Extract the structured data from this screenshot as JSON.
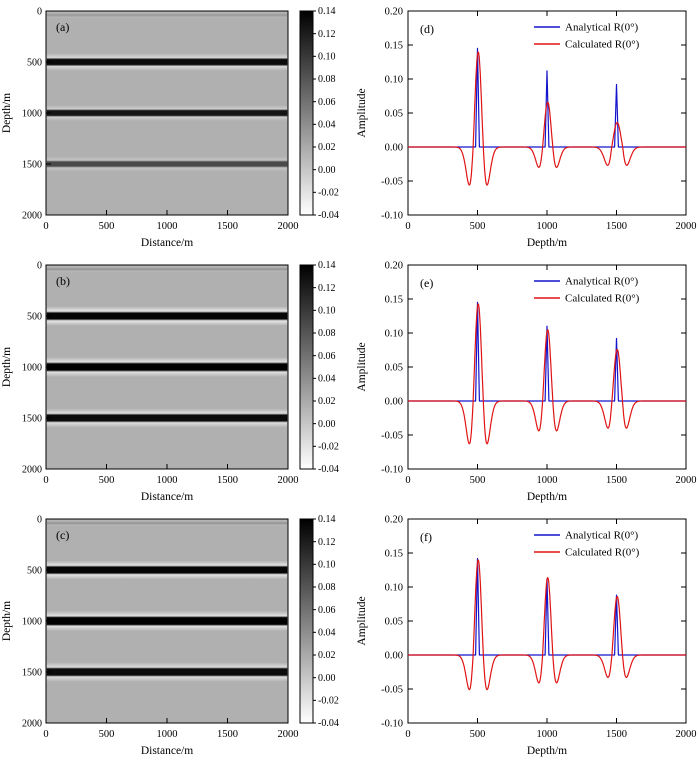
{
  "colors": {
    "analytical": "#1414cc",
    "calculated": "#e01414",
    "heatmap_background": "#b0b0b0",
    "axis": "#000000"
  },
  "chart_data": [
    {
      "id": "a",
      "type": "heatmap",
      "panel_label": "(a)",
      "xlabel": "Distance/m",
      "ylabel": "Depth/m",
      "xlim": [
        0,
        2000
      ],
      "ylim": [
        0,
        2000
      ],
      "xticks": [
        0,
        500,
        1000,
        1500,
        2000
      ],
      "xtick_labels": [
        "0",
        "500",
        "1000",
        "1500",
        "2000"
      ],
      "yticks": [
        0,
        500,
        1000,
        1500,
        2000
      ],
      "ytick_labels": [
        "0",
        "500",
        "1000",
        "1500",
        "2000"
      ],
      "background": "#b0b0b0",
      "reflectors": [
        {
          "depth_m": 40,
          "core": "#9f9f9f",
          "halo": "#b6b6b6",
          "core_m": 20,
          "halo_m": 70
        },
        {
          "depth_m": 500,
          "core": "#0a0a0a",
          "halo": "#d9d9d9",
          "core_m": 50,
          "halo_m": 170
        },
        {
          "depth_m": 1000,
          "core": "#141414",
          "halo": "#cdcdcd",
          "core_m": 45,
          "halo_m": 155
        },
        {
          "depth_m": 1500,
          "core": "#4a4a4a",
          "halo": "#c3c3c3",
          "core_m": 40,
          "halo_m": 150
        }
      ],
      "colorbar": {
        "vmax": 0.14,
        "vmin": -0.04,
        "top_color": "#000000",
        "bottom_color": "#ffffff",
        "tick_labels": [
          "0.14",
          "0.12",
          "0.10",
          "0.08",
          "0.06",
          "0.04",
          "0.02",
          "0.00",
          "-0.02",
          "-0.04"
        ]
      }
    },
    {
      "id": "b",
      "type": "heatmap",
      "panel_label": "(b)",
      "xlabel": "Distance/m",
      "ylabel": "Depth/m",
      "xlim": [
        0,
        2000
      ],
      "ylim": [
        0,
        2000
      ],
      "xticks": [
        0,
        500,
        1000,
        1500,
        2000
      ],
      "xtick_labels": [
        "0",
        "500",
        "1000",
        "1500",
        "2000"
      ],
      "yticks": [
        0,
        500,
        1000,
        1500,
        2000
      ],
      "ytick_labels": [
        "0",
        "500",
        "1000",
        "1500",
        "2000"
      ],
      "background": "#b0b0b0",
      "reflectors": [
        {
          "depth_m": 40,
          "core": "#9b9b9b",
          "halo": "#b8b8b8",
          "core_m": 20,
          "halo_m": 70
        },
        {
          "depth_m": 500,
          "core": "#050505",
          "halo": "#e8e8e8",
          "core_m": 55,
          "halo_m": 190
        },
        {
          "depth_m": 1000,
          "core": "#000000",
          "halo": "#e0e0e0",
          "core_m": 60,
          "halo_m": 195
        },
        {
          "depth_m": 1500,
          "core": "#0a0a0a",
          "halo": "#dedede",
          "core_m": 55,
          "halo_m": 185
        }
      ],
      "colorbar": {
        "vmax": 0.14,
        "vmin": -0.04,
        "top_color": "#000000",
        "bottom_color": "#ffffff",
        "tick_labels": [
          "0.14",
          "0.12",
          "0.10",
          "0.08",
          "0.06",
          "0.04",
          "0.02",
          "0.00",
          "-0.02",
          "-0.04"
        ]
      }
    },
    {
      "id": "c",
      "type": "heatmap",
      "panel_label": "(c)",
      "xlabel": "Distance/m",
      "ylabel": "Depth/m",
      "xlim": [
        0,
        2000
      ],
      "ylim": [
        0,
        2000
      ],
      "xticks": [
        0,
        500,
        1000,
        1500,
        2000
      ],
      "xtick_labels": [
        "0",
        "500",
        "1000",
        "1500",
        "2000"
      ],
      "yticks": [
        0,
        500,
        1000,
        1500,
        2000
      ],
      "ytick_labels": [
        "0",
        "500",
        "1000",
        "1500",
        "2000"
      ],
      "background": "#b0b0b0",
      "reflectors": [
        {
          "depth_m": 40,
          "core": "#9b9b9b",
          "halo": "#b8b8b8",
          "core_m": 20,
          "halo_m": 70
        },
        {
          "depth_m": 500,
          "core": "#060606",
          "halo": "#e4e4e4",
          "core_m": 55,
          "halo_m": 185
        },
        {
          "depth_m": 1000,
          "core": "#000000",
          "halo": "#e0e0e0",
          "core_m": 65,
          "halo_m": 200
        },
        {
          "depth_m": 1500,
          "core": "#0c0c0c",
          "halo": "#dcdcdc",
          "core_m": 60,
          "halo_m": 190
        }
      ],
      "colorbar": {
        "vmax": 0.14,
        "vmin": -0.04,
        "top_color": "#000000",
        "bottom_color": "#ffffff",
        "tick_labels": [
          "0.14",
          "0.12",
          "0.10",
          "0.08",
          "0.06",
          "0.04",
          "0.02",
          "0.00",
          "-0.02",
          "-0.04"
        ]
      }
    },
    {
      "id": "d",
      "type": "line",
      "panel_label": "(d)",
      "xlabel": "Depth/m",
      "ylabel": "Amplitude",
      "xlim": [
        0,
        2000
      ],
      "ylim": [
        -0.1,
        0.2
      ],
      "xticks": [
        0,
        500,
        1000,
        1500,
        2000
      ],
      "xtick_labels": [
        "0",
        "500",
        "1000",
        "1500",
        "2000"
      ],
      "yticks": [
        -0.1,
        -0.05,
        0.0,
        0.05,
        0.1,
        0.15,
        0.2
      ],
      "ytick_labels": [
        "-0.10",
        "-0.05",
        "0.00",
        "0.05",
        "0.10",
        "0.15",
        "0.20"
      ],
      "legend": {
        "position": "top-right",
        "entries": [
          {
            "label": "Analytical R(0°)",
            "color": "#1414cc"
          },
          {
            "label": "Calculated R(0°)",
            "color": "#e01414"
          }
        ]
      },
      "series": [
        {
          "name": "Analytical R(0°)",
          "color": "#1414cc",
          "shape": "spike",
          "spikes": [
            {
              "center": 500,
              "peak": 0.145,
              "half_width": 14
            },
            {
              "center": 1000,
              "peak": 0.112,
              "half_width": 14
            },
            {
              "center": 1500,
              "peak": 0.092,
              "half_width": 14
            }
          ]
        },
        {
          "name": "Calculated R(0°)",
          "color": "#e01414",
          "shape": "ricker",
          "wavelets": [
            {
              "center": 505,
              "peak": 0.14,
              "trough": -0.056,
              "width_m": 52
            },
            {
              "center": 1005,
              "peak": 0.066,
              "trough": -0.03,
              "width_m": 52
            },
            {
              "center": 1505,
              "peak": 0.036,
              "trough": -0.027,
              "width_m": 56
            }
          ]
        }
      ]
    },
    {
      "id": "e",
      "type": "line",
      "panel_label": "(e)",
      "xlabel": "Depth/m",
      "ylabel": "Amplitude",
      "xlim": [
        0,
        2000
      ],
      "ylim": [
        -0.1,
        0.2
      ],
      "xticks": [
        0,
        500,
        1000,
        1500,
        2000
      ],
      "xtick_labels": [
        "0",
        "500",
        "1000",
        "1500",
        "2000"
      ],
      "yticks": [
        -0.1,
        -0.05,
        0.0,
        0.05,
        0.1,
        0.15,
        0.2
      ],
      "ytick_labels": [
        "-0.10",
        "-0.05",
        "0.00",
        "0.05",
        "0.10",
        "0.15",
        "0.20"
      ],
      "legend": {
        "position": "top-right",
        "entries": [
          {
            "label": "Analytical R(0°)",
            "color": "#1414cc"
          },
          {
            "label": "Calculated R(0°)",
            "color": "#e01414"
          }
        ]
      },
      "series": [
        {
          "name": "Analytical R(0°)",
          "color": "#1414cc",
          "shape": "spike",
          "spikes": [
            {
              "center": 500,
              "peak": 0.145,
              "half_width": 14
            },
            {
              "center": 1000,
              "peak": 0.11,
              "half_width": 14
            },
            {
              "center": 1500,
              "peak": 0.092,
              "half_width": 14
            }
          ]
        },
        {
          "name": "Calculated R(0°)",
          "color": "#e01414",
          "shape": "ricker",
          "wavelets": [
            {
              "center": 505,
              "peak": 0.143,
              "trough": -0.063,
              "width_m": 52
            },
            {
              "center": 1005,
              "peak": 0.105,
              "trough": -0.044,
              "width_m": 52
            },
            {
              "center": 1505,
              "peak": 0.076,
              "trough": -0.04,
              "width_m": 54
            }
          ]
        }
      ]
    },
    {
      "id": "f",
      "type": "line",
      "panel_label": "(f)",
      "xlabel": "Depth/m",
      "ylabel": "Amplitude",
      "xlim": [
        0,
        2000
      ],
      "ylim": [
        -0.1,
        0.2
      ],
      "xticks": [
        0,
        500,
        1000,
        1500,
        2000
      ],
      "xtick_labels": [
        "0",
        "500",
        "1000",
        "1500",
        "2000"
      ],
      "yticks": [
        -0.1,
        -0.05,
        0.0,
        0.05,
        0.1,
        0.15,
        0.2
      ],
      "ytick_labels": [
        "-0.10",
        "-0.05",
        "0.00",
        "0.05",
        "0.10",
        "0.15",
        "0.20"
      ],
      "legend": {
        "position": "top-right",
        "entries": [
          {
            "label": "Analytical R(0°)",
            "color": "#1414cc"
          },
          {
            "label": "Calculated R(0°)",
            "color": "#e01414"
          }
        ]
      },
      "series": [
        {
          "name": "Analytical R(0°)",
          "color": "#1414cc",
          "shape": "spike",
          "spikes": [
            {
              "center": 500,
              "peak": 0.142,
              "half_width": 14
            },
            {
              "center": 1000,
              "peak": 0.112,
              "half_width": 14
            },
            {
              "center": 1500,
              "peak": 0.088,
              "half_width": 14
            }
          ]
        },
        {
          "name": "Calculated R(0°)",
          "color": "#e01414",
          "shape": "ricker",
          "wavelets": [
            {
              "center": 505,
              "peak": 0.14,
              "trough": -0.051,
              "width_m": 52
            },
            {
              "center": 1005,
              "peak": 0.114,
              "trough": -0.041,
              "width_m": 52
            },
            {
              "center": 1505,
              "peak": 0.086,
              "trough": -0.033,
              "width_m": 54
            }
          ]
        }
      ]
    }
  ]
}
